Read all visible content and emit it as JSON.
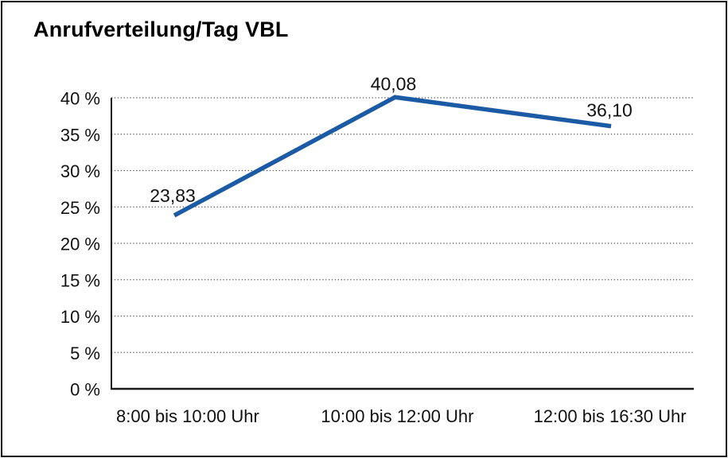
{
  "chart_data": {
    "type": "line",
    "title": "Anrufverteilung/Tag VBL",
    "categories": [
      "8:00 bis 10:00 Uhr",
      "10:00 bis 12:00 Uhr",
      "12:00 bis 16:30 Uhr"
    ],
    "values": [
      23.83,
      40.08,
      36.1
    ],
    "point_labels": [
      "23,83",
      "40,08",
      "36,10"
    ],
    "xlabel": "",
    "ylabel": "",
    "ylim": [
      0,
      40
    ],
    "ytick_step": 5,
    "yticks": [
      "0 %",
      "5 %",
      "10 %",
      "15 %",
      "20 %",
      "25 %",
      "30 %",
      "35 %",
      "40 %"
    ],
    "grid": "horizontal-dotted",
    "legend": "none",
    "line_color": "#1B5AA5",
    "axis_color": "#1a1a1a",
    "gridline_color": "#555555",
    "text_color": "#111111",
    "background_color": "#ffffff",
    "border_color": "#111111"
  }
}
